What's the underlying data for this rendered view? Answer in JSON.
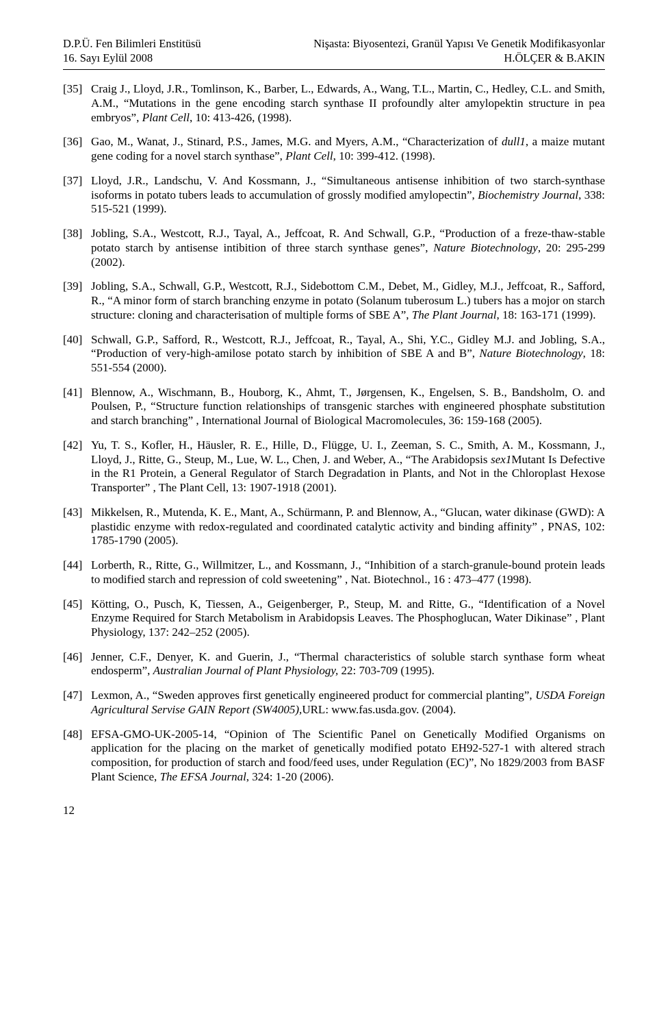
{
  "header": {
    "left_line1": "D.P.Ü. Fen Bilimleri Enstitüsü",
    "left_line2": "16. Sayı           Eylül 2008",
    "right_line1": "Nişasta: Biyosentezi, Granül Yapısı Ve Genetik Modifikasyonlar",
    "right_line2": "H.ÖLÇER & B.AKIN"
  },
  "refs": [
    {
      "n": "[35]",
      "pre": "Craig J., Lloyd, J.R., Tomlinson, K., Barber, L., Edwards, A., Wang, T.L., Martin, C., Hedley, C.L. and Smith, A.M., “Mutations in the gene encoding starch synthase II profoundly alter amylopektin structure in pea embryos”, ",
      "ital": "Plant Cell",
      "post": ", 10: 413-426, (1998)."
    },
    {
      "n": "[36]",
      "pre": "Gao, M., Wanat, J., Stinard, P.S., James, M.G. and Myers, A.M., “Characterization of ",
      "ital": "dull1",
      "post": ", a maize mutant gene coding for a novel starch synthase”, ",
      "ital2": "Plant Cell",
      "post2": ", 10: 399-412. (1998)."
    },
    {
      "n": "[37]",
      "pre": "Lloyd, J.R., Landschu, V. And Kossmann, J., “Simultaneous antisense inhibition of two starch-synthase isoforms in potato tubers leads to accumulation of grossly modified amylopectin”, ",
      "ital": "Biochemistry Journal",
      "post": ", 338: 515-521 (1999)."
    },
    {
      "n": "[38]",
      "pre": "Jobling, S.A., Westcott, R.J., Tayal, A., Jeffcoat, R. And Schwall, G.P., “Production of a freze-thaw-stable potato starch by antisense intibition of three starch synthase genes”, ",
      "ital": "Nature Biotechnology",
      "post": ", 20: 295-299 (2002)."
    },
    {
      "n": "[39]",
      "pre": "Jobling, S.A., Schwall, G.P., Westcott, R.J., Sidebottom C.M., Debet, M., Gidley, M.J., Jeffcoat, R., Safford, R., “A minor form of starch branching enzyme in potato (Solanum tuberosum L.) tubers has a mojor on starch structure: cloning and characterisation of multiple forms of SBE A”, ",
      "ital": "The Plant Journal",
      "post": ", 18: 163-171 (1999)."
    },
    {
      "n": "[40]",
      "pre": "Schwall, G.P., Safford, R., Westcott, R.J., Jeffcoat, R., Tayal, A., Shi, Y.C., Gidley M.J. and Jobling, S.A., “Production of very-high-amilose potato starch by inhibition of SBE A and B”, ",
      "ital": "Nature Biotechnology",
      "post": ", 18: 551-554 (2000)."
    },
    {
      "n": "[41]",
      "pre": "Blennow, A., Wischmann, B., Houborg, K.,  Ahmt, T., Jørgensen, K., Engelsen, S. B., Bandsholm, O. and Poulsen, P., “Structure function relationships of transgenic starches with engineered phosphate substitution and starch branching” , International Journal of Biological Macromolecules, 36: 159-168 (2005).",
      "ital": "",
      "post": ""
    },
    {
      "n": "[42]",
      "pre": "Yu, T. S., Kofler, H., Häusler, R. E., Hille, D., Flügge, U. I., Zeeman, S. C., Smith, A. M., Kossmann, J., Lloyd, J., Ritte, G., Steup, M.,  Lue, W. L., Chen, J. and Weber, A., “The Arabidopsis ",
      "ital": "sex1",
      "post": "Mutant Is Defective in the R1 Protein, a General Regulator of Starch Degradation in Plants, and Not in the Chloroplast Hexose Transporter” , The Plant Cell, 13: 1907-1918 (2001)."
    },
    {
      "n": "[43]",
      "pre": "Mikkelsen, R., Mutenda, K. E., Mant, A., Schürmann, P. and Blennow, A., “Glucan, water dikinase (GWD): A plastidic enzyme with redox-regulated and coordinated catalytic activity and binding affinity” , PNAS, 102: 1785-1790 (2005).",
      "ital": "",
      "post": ""
    },
    {
      "n": "[44]",
      "pre": "Lorberth, R., Ritte, G., Willmitzer, L., and Kossmann, J., “Inhibition of a starch-granule-bound protein leads to modified starch and repression of cold sweetening” , Nat. Biotechnol., 16 : 473–477 (1998).",
      "ital": "",
      "post": ""
    },
    {
      "n": "[45]",
      "pre": "Kötting, O., Pusch, K, Tiessen, A., Geigenberger, P., Steup, M. and Ritte, G., “Identification of a Novel Enzyme Required for Starch Metabolism in Arabidopsis Leaves. The Phosphoglucan, Water Dikinase” , Plant Physiology,  137: 242–252 (2005).",
      "ital": "",
      "post": ""
    },
    {
      "n": "[46]",
      "pre": "Jenner, C.F., Denyer, K. and Guerin, J., “Thermal characteristics of soluble starch synthase form wheat endosperm”, ",
      "ital": "Australian Journal of Plant Physiology,",
      "post": " 22: 703-709 (1995)."
    },
    {
      "n": "[47]",
      "pre": "Lexmon, A., “Sweden approves first genetically engineered product for commercial planting”, ",
      "ital": "USDA Foreign Agricultural Servise GAIN Report (SW4005),",
      "post": "URL: www.fas.usda.gov. (2004)."
    },
    {
      "n": "[48]",
      "pre": "EFSA-GMO-UK-2005-14, “Opinion of The Scientific Panel on Genetically Modified Organisms on application for the placing on the market of genetically modified potato EH92-527-1 with altered strach composition, for production of starch and food/feed uses, under Regulation (EC)”, No 1829/2003 from BASF Plant Science, ",
      "ital": "The EFSA Journal",
      "post": ", 324: 1-20 (2006)."
    }
  ],
  "page_number": "12"
}
